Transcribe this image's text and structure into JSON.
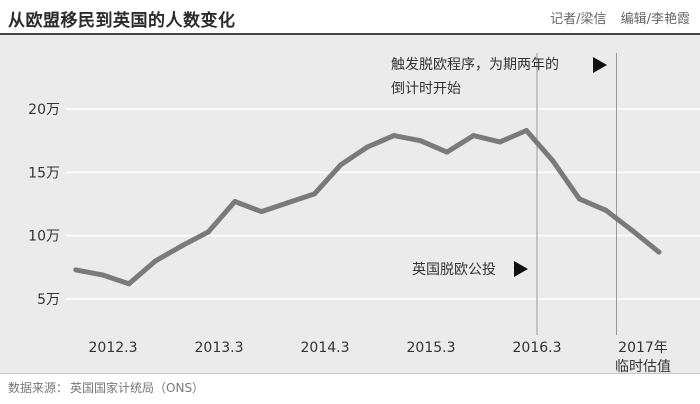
{
  "header": {
    "title": "从欧盟移民到英国的人数变化",
    "reporter": "记者/梁信",
    "editor": "编辑/李艳霞"
  },
  "source": {
    "prefix": "数据来源：",
    "text": "英国国家计统局（ONS）"
  },
  "annotations": {
    "brexit_vote": "英国脱欧公投",
    "article50_line1": "触发脱欧程序，为期两年的",
    "article50_line2": "倒计时开始"
  },
  "chart_data": {
    "type": "line",
    "title": "从欧盟移民到英国的人数变化",
    "xlabel": "",
    "ylabel": "",
    "ylim": [
      3,
      22
    ],
    "grid": true,
    "y_ticks": [
      {
        "value": 5,
        "label": "5万"
      },
      {
        "value": 10,
        "label": "10万"
      },
      {
        "value": 15,
        "label": "15万"
      },
      {
        "value": 20,
        "label": "20万"
      }
    ],
    "x_ticks": [
      {
        "value": 2012.25,
        "label": "2012.3"
      },
      {
        "value": 2013.25,
        "label": "2013.3"
      },
      {
        "value": 2014.25,
        "label": "2014.3"
      },
      {
        "value": 2015.25,
        "label": "2015.3"
      },
      {
        "value": 2016.25,
        "label": "2016.3"
      },
      {
        "value": 2017.25,
        "label": "2017年",
        "label2": "临时估值"
      }
    ],
    "reference_lines": [
      {
        "x": 2016.25,
        "label": "英国脱欧公投"
      },
      {
        "x": 2017.0,
        "label": "触发脱欧程序，为期两年的倒计时开始"
      }
    ],
    "series": [
      {
        "values": [
          {
            "x": 2011.9,
            "y": 7.3
          },
          {
            "x": 2012.15,
            "y": 6.9
          },
          {
            "x": 2012.4,
            "y": 6.2
          },
          {
            "x": 2012.65,
            "y": 8.0
          },
          {
            "x": 2012.9,
            "y": 9.2
          },
          {
            "x": 2013.15,
            "y": 10.3
          },
          {
            "x": 2013.4,
            "y": 12.7
          },
          {
            "x": 2013.65,
            "y": 11.9
          },
          {
            "x": 2013.9,
            "y": 12.6
          },
          {
            "x": 2014.15,
            "y": 13.3
          },
          {
            "x": 2014.4,
            "y": 15.6
          },
          {
            "x": 2014.65,
            "y": 17.0
          },
          {
            "x": 2014.9,
            "y": 17.9
          },
          {
            "x": 2015.15,
            "y": 17.5
          },
          {
            "x": 2015.4,
            "y": 16.6
          },
          {
            "x": 2015.65,
            "y": 17.9
          },
          {
            "x": 2015.9,
            "y": 17.4
          },
          {
            "x": 2016.15,
            "y": 18.3
          },
          {
            "x": 2016.4,
            "y": 15.9
          },
          {
            "x": 2016.65,
            "y": 12.9
          },
          {
            "x": 2016.9,
            "y": 12.0
          },
          {
            "x": 2017.15,
            "y": 10.4
          },
          {
            "x": 2017.4,
            "y": 8.7
          }
        ]
      }
    ],
    "colors": {
      "line": "#7a7a7a",
      "grid": "#ffffff",
      "ref_line": "#999999"
    }
  }
}
